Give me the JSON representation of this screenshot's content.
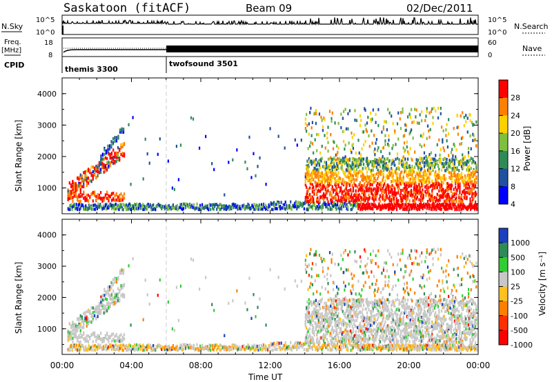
{
  "header": {
    "station": "Saskatoon (fitACF)",
    "beam": "Beam 09",
    "date": "02/Dec/2011"
  },
  "top_panels": {
    "nsky_label": "N.Sky",
    "nsearch_label": "N.Search",
    "nsky_ticks": [
      "10^5",
      "10^0"
    ],
    "nsearch_ticks": [
      "10^5",
      "10^0"
    ],
    "freq_label": "Freq.",
    "freq_unit": "[MHz]",
    "freq_ticks": [
      "18",
      "8"
    ],
    "nave_label": "Nave",
    "nave_ticks": [
      "60",
      "0"
    ],
    "cpid_label": "CPID",
    "cpid_segments": [
      "themis 3300",
      "twofsound 3501"
    ]
  },
  "chart_data": [
    {
      "type": "heatmap",
      "parameter": "power",
      "ylabel": "Slant Range [km]",
      "ylim": [
        180,
        4500
      ],
      "yticks": [
        "4000",
        "3000",
        "2000",
        "1000"
      ],
      "colorbar_label": "Power [dB]",
      "colorbar_ticks": [
        "28",
        "24",
        "20",
        "16",
        "12",
        "8",
        "4"
      ],
      "colorbar_colors": [
        "#ff0000",
        "#ff7f00",
        "#ffd000",
        "#7fbf3f",
        "#2e8b57",
        "#2050a0",
        "#0000ff"
      ]
    },
    {
      "type": "heatmap",
      "parameter": "velocity",
      "ylabel": "Slant Range [km]",
      "ylim": [
        180,
        4500
      ],
      "yticks": [
        "4000",
        "3000",
        "2000",
        "1000"
      ],
      "colorbar_label": "Velocity [m s⁻¹]",
      "colorbar_ticks": [
        "1000",
        "500",
        "100",
        "25",
        "-25",
        "-100",
        "-500",
        "-1000"
      ],
      "colorbar_colors": [
        "#1a3fbf",
        "#2e8b57",
        "#33cc33",
        "#c8c8c8",
        "#ffc020",
        "#ff8000",
        "#ff3000",
        "#ff0000"
      ]
    }
  ],
  "xaxis": {
    "label": "Time UT",
    "ticks": [
      "00:00",
      "04:00",
      "08:00",
      "12:00",
      "16:00",
      "20:00",
      "00:00"
    ]
  }
}
